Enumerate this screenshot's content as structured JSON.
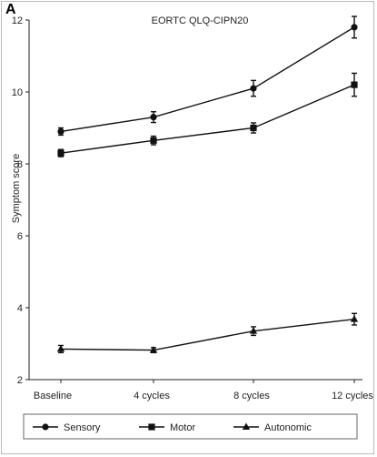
{
  "panel_label": "A",
  "chart_data": {
    "type": "line",
    "title": "EORTC QLQ-CIPN20",
    "xlabel": "",
    "ylabel": "Symptom score",
    "categories": [
      "Baseline",
      "4 cycles",
      "8 cycles",
      "12 cycles"
    ],
    "ylim": [
      2,
      12
    ],
    "yticks": [
      2,
      4,
      6,
      8,
      10,
      12
    ],
    "grid": false,
    "legend_position": "bottom",
    "series": [
      {
        "name": "Sensory",
        "marker": "circle",
        "values": [
          8.9,
          9.3,
          10.1,
          11.8
        ],
        "errors": [
          0.1,
          0.15,
          0.22,
          0.3
        ]
      },
      {
        "name": "Motor",
        "marker": "square",
        "values": [
          8.3,
          8.65,
          9.0,
          10.2
        ],
        "errors": [
          0.1,
          0.12,
          0.14,
          0.32
        ]
      },
      {
        "name": "Autonomic",
        "marker": "triangle",
        "values": [
          2.85,
          2.82,
          3.35,
          3.68
        ],
        "errors": [
          0.1,
          0.07,
          0.12,
          0.16
        ]
      }
    ]
  }
}
